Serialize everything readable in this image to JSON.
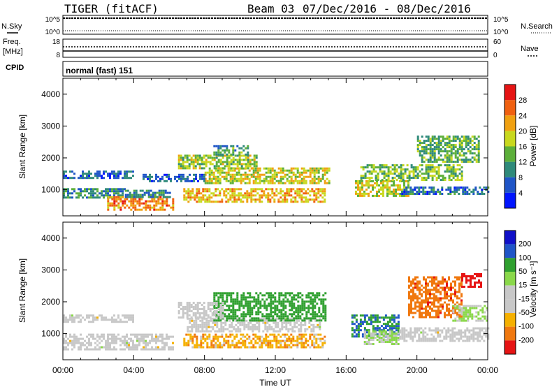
{
  "header": {
    "title": "TIGER (fitACF)",
    "beam": "Beam 03",
    "dates": "07/Dec/2016 - 08/Dec/2016"
  },
  "top_panels": {
    "nsky": {
      "label": "N.Sky",
      "ticks": [
        "10^5",
        "10^0"
      ],
      "right_ticks": [
        "10^5",
        "10^0"
      ],
      "right_label": "N.Search"
    },
    "freq": {
      "label_1": "Freq.",
      "label_2": "[MHz]",
      "ticks": [
        "18",
        "8"
      ],
      "right_ticks": [
        "60",
        "0"
      ],
      "right_label": "Nave"
    },
    "cpid": {
      "label": "CPID",
      "value": "normal (fast) 151"
    }
  },
  "colors": {
    "power": [
      "#0015ff",
      "#1f55c7",
      "#2f8a7a",
      "#5caf3a",
      "#c8d81e",
      "#f0a010",
      "#f06010",
      "#e61414"
    ],
    "velocity": [
      "#e61414",
      "#f0780f",
      "#f5b000",
      "#c8c8c8",
      "#c8c8c8",
      "#8ad84a",
      "#2fa02f",
      "#1f55c7",
      "#1010c8"
    ],
    "velocity_gray": "#c8c8c8"
  },
  "chart_data": [
    {
      "type": "heatmap",
      "title": "",
      "ylabel": "Slant Range [km]",
      "xlabel": "",
      "x_unit": "hours UT from 07/Dec/2016 00:00",
      "xlim": [
        0,
        24
      ],
      "ylim": [
        180,
        4500
      ],
      "y_ticks": [
        "1000",
        "2000",
        "3000",
        "4000"
      ],
      "colorbar": {
        "label": "Power [dB]",
        "ticks": [
          "4",
          "8",
          "12",
          "16",
          "20",
          "24",
          "28"
        ],
        "range": [
          0,
          32
        ]
      },
      "regions": [
        {
          "t": [
            0,
            3.5
          ],
          "r": [
            750,
            1050
          ],
          "level": 10
        },
        {
          "t": [
            0,
            4.0
          ],
          "r": [
            1400,
            1600
          ],
          "level": 7
        },
        {
          "t": [
            2.5,
            6.2
          ],
          "r": [
            400,
            800
          ],
          "level": 24
        },
        {
          "t": [
            3.5,
            6.0
          ],
          "r": [
            800,
            1000
          ],
          "level": 10
        },
        {
          "t": [
            6.8,
            14.8
          ],
          "r": [
            600,
            1050
          ],
          "level": 21
        },
        {
          "t": [
            8.0,
            15.0
          ],
          "r": [
            1200,
            1700
          ],
          "level": 18
        },
        {
          "t": [
            6.5,
            11.0
          ],
          "r": [
            1700,
            2100
          ],
          "level": 16
        },
        {
          "t": [
            8.5,
            10.5
          ],
          "r": [
            2100,
            2400
          ],
          "level": 12
        },
        {
          "t": [
            4.5,
            8.0
          ],
          "r": [
            1300,
            1500
          ],
          "level": 7
        },
        {
          "t": [
            16.5,
            19.5
          ],
          "r": [
            800,
            1300
          ],
          "level": 18
        },
        {
          "t": [
            16.8,
            22.5
          ],
          "r": [
            1300,
            1800
          ],
          "level": 15
        },
        {
          "t": [
            19.0,
            24.0
          ],
          "r": [
            900,
            1100
          ],
          "level": 8
        },
        {
          "t": [
            20.0,
            23.5
          ],
          "r": [
            1900,
            2700
          ],
          "level": 13
        }
      ]
    },
    {
      "type": "heatmap",
      "title": "",
      "ylabel": "Slant Range [km]",
      "xlabel": "Time UT",
      "x_unit": "hours UT from 07/Dec/2016 00:00",
      "xlim": [
        0,
        24
      ],
      "ylim": [
        180,
        4500
      ],
      "x_ticks": [
        "00:00",
        "04:00",
        "08:00",
        "12:00",
        "16:00",
        "20:00",
        "00:00"
      ],
      "y_ticks": [
        "1000",
        "2000",
        "3000",
        "4000"
      ],
      "colorbar": {
        "label": "Velocity [m s⁻¹]",
        "ticks": [
          "200",
          "100",
          "50",
          "15",
          "-15",
          "-50",
          "-100",
          "-200"
        ],
        "range": [
          -250,
          250
        ]
      },
      "regions": [
        {
          "t": [
            0,
            6.2
          ],
          "r": [
            500,
            1000
          ],
          "velocity": 0
        },
        {
          "t": [
            0,
            4.0
          ],
          "r": [
            1400,
            1600
          ],
          "velocity": 0
        },
        {
          "t": [
            6.8,
            14.8
          ],
          "r": [
            600,
            1000
          ],
          "velocity": -55
        },
        {
          "t": [
            7.0,
            14.5
          ],
          "r": [
            1100,
            1500
          ],
          "velocity": 0
        },
        {
          "t": [
            8.5,
            14.8
          ],
          "r": [
            1400,
            2300
          ],
          "velocity": 110
        },
        {
          "t": [
            6.5,
            9.0
          ],
          "r": [
            1500,
            2000
          ],
          "velocity": 0
        },
        {
          "t": [
            16.3,
            19.0
          ],
          "r": [
            900,
            1600
          ],
          "velocity": 150
        },
        {
          "t": [
            17.0,
            19.0
          ],
          "r": [
            700,
            1100
          ],
          "velocity": 40
        },
        {
          "t": [
            19.0,
            24.0
          ],
          "r": [
            800,
            1200
          ],
          "velocity": 0
        },
        {
          "t": [
            19.5,
            22.5
          ],
          "r": [
            1500,
            2800
          ],
          "velocity": -120
        },
        {
          "t": [
            22.0,
            24.0
          ],
          "r": [
            1400,
            1900
          ],
          "velocity": 30
        },
        {
          "t": [
            22.5,
            23.6
          ],
          "r": [
            2500,
            2900
          ],
          "velocity": -220
        }
      ]
    }
  ]
}
